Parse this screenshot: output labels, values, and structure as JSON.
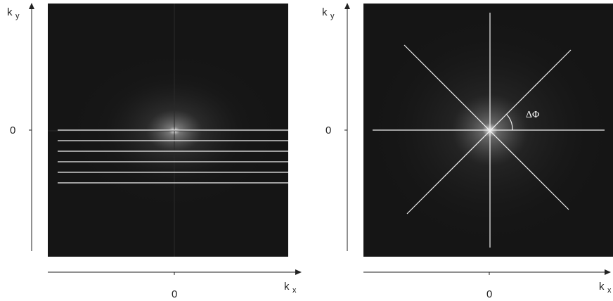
{
  "left_panel": {
    "title": "",
    "ky_label": "k",
    "ky_subscript": "y",
    "kx_label": "k",
    "kx_subscript": "x",
    "ky_zero": "0",
    "kx_zero": "0",
    "trajectory": "cartesian",
    "line_count": 6
  },
  "right_panel": {
    "title": "",
    "ky_label": "k",
    "ky_subscript": "y",
    "kx_label": "k",
    "kx_subscript": "x",
    "ky_zero": "0",
    "kx_zero": "0",
    "trajectory": "radial",
    "spoke_angles_deg": [
      0,
      45,
      90,
      135
    ],
    "angle_label": "ΔΦ"
  },
  "colors": {
    "panel_background": "#151515",
    "trajectory_line": "#f2f2f2",
    "axis": "#222222"
  }
}
